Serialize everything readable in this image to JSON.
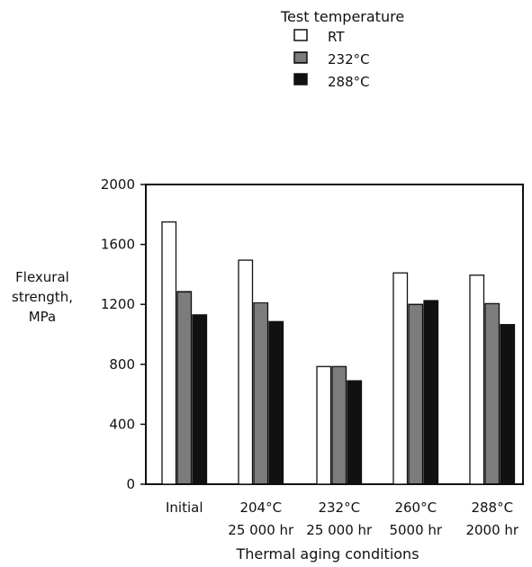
{
  "chart_data": {
    "type": "bar",
    "title": "",
    "legend": {
      "title": "Test temperature",
      "placement": "top-right",
      "entries": [
        {
          "name": "RT",
          "pattern": "open"
        },
        {
          "name": "232°C",
          "pattern": "striped"
        },
        {
          "name": "288°C",
          "pattern": "solid"
        }
      ]
    },
    "ylabel_lines": [
      "Flexural",
      "strength,",
      "MPa"
    ],
    "xlabel": "Thermal aging conditions",
    "ylim": [
      0,
      2000
    ],
    "yticks": [
      0,
      400,
      800,
      1200,
      1600,
      2000
    ],
    "categories": [
      {
        "line1": "Initial",
        "line2": ""
      },
      {
        "line1": "204°C",
        "line2": "25 000 hr"
      },
      {
        "line1": "232°C",
        "line2": "25 000 hr"
      },
      {
        "line1": "260°C",
        "line2": "5000 hr"
      },
      {
        "line1": "288°C",
        "line2": "2000 hr"
      }
    ],
    "series": [
      {
        "name": "RT",
        "values": [
          1750,
          1495,
          785,
          1410,
          1395
        ]
      },
      {
        "name": "232°C",
        "values": [
          1285,
          1210,
          785,
          1200,
          1205
        ]
      },
      {
        "name": "288°C",
        "values": [
          1130,
          1085,
          690,
          1225,
          1065
        ]
      }
    ],
    "grid": false
  }
}
